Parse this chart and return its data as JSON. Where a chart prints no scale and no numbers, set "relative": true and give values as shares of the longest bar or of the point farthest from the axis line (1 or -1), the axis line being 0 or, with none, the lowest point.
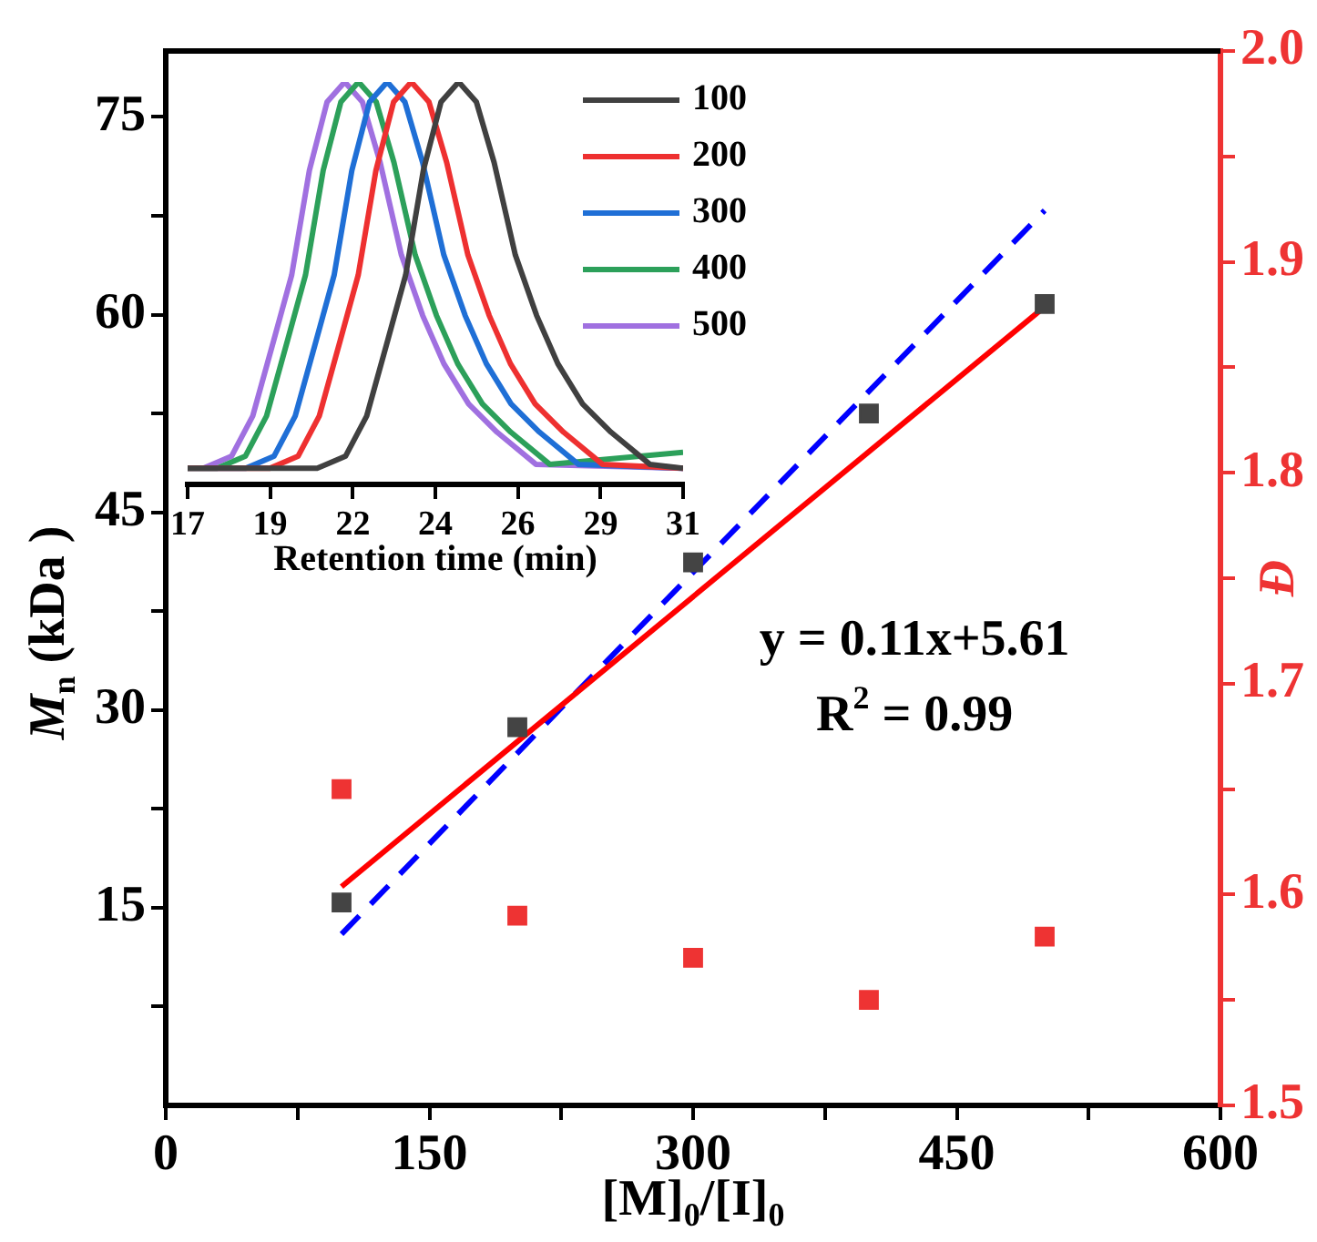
{
  "chart_data": [
    {
      "type": "scatter",
      "xlabel": "[M]$_{0}$/[I]$_{0}$",
      "ylabel": "M$_{n}$ (kDa )",
      "y2label": "Đ",
      "xlim": [
        0,
        600
      ],
      "xticks": [
        0,
        {
          "value": 75,
          "label": null
        },
        150,
        {
          "value": 225,
          "label": null
        },
        300,
        {
          "value": 375,
          "label": null
        },
        450,
        {
          "value": 525,
          "label": null
        },
        600
      ],
      "ylim": [
        0,
        80
      ],
      "yticks": [
        {
          "value": 7.5,
          "label": null
        },
        15,
        {
          "value": 22.5,
          "label": null
        },
        30,
        {
          "value": 37.5,
          "label": null
        },
        45,
        {
          "value": 52.5,
          "label": null
        },
        60,
        {
          "value": 67.5,
          "label": null
        },
        75
      ],
      "y2lim": [
        1.5,
        2.0
      ],
      "y2ticks": [
        1.5,
        {
          "value": 1.55,
          "label": null
        },
        1.6,
        {
          "value": 1.65,
          "label": null
        },
        1.7,
        {
          "value": 1.75,
          "label": null
        },
        1.8,
        {
          "value": 1.85,
          "label": null
        },
        1.9,
        {
          "value": 1.95,
          "label": null
        },
        {
          "value": 2,
          "label": "2.0"
        }
      ],
      "grid": false,
      "legend": false,
      "annotations": [
        "y = 0.11x+5.61",
        "R$^{2}$ = 0.99"
      ],
      "series": [
        {
          "type": "scatter",
          "marker": "square",
          "color": "#444444",
          "x": [
            100,
            200,
            300,
            400,
            500
          ],
          "values": [
            15.4,
            28.7,
            41.2,
            52.5,
            60.8
          ]
        },
        {
          "type": "scatter",
          "marker": "square",
          "color": "#ee3333",
          "axis": "y2",
          "x": [
            100,
            200,
            300,
            400,
            500
          ],
          "values": [
            1.65,
            1.59,
            1.57,
            1.55,
            1.58
          ]
        },
        {
          "type": "line",
          "marker": "none",
          "line_style": "solid",
          "color": "#ff0000",
          "x": [
            100,
            500
          ],
          "values": [
            16.6,
            60.6
          ]
        },
        {
          "type": "line",
          "marker": "none",
          "line_style": "dashed",
          "color": "#0000ff",
          "x": [
            100,
            500
          ],
          "values": [
            13,
            67.9
          ]
        }
      ]
    },
    {
      "type": "line",
      "xlabel": "Retention time (min)",
      "relative": true,
      "xlim": [
        17,
        31
      ],
      "xticks": [
        17,
        {
          "value": 19.33,
          "label": "19"
        },
        {
          "value": 21.67,
          "label": "22"
        },
        24,
        {
          "value": 26.33,
          "label": "26"
        },
        {
          "value": 28.67,
          "label": "29"
        },
        31
      ],
      "legend": "top right",
      "marker": "none",
      "grid": false,
      "series": [
        {
          "name": "100",
          "color": "#404040",
          "x": [
            17,
            20.66,
            21.46,
            22.06,
            22.66,
            23.16,
            23.66,
            24.16,
            24.66,
            25.16,
            25.66,
            26.26,
            26.86,
            27.46,
            28.16,
            28.96,
            30.06,
            31
          ],
          "values": [
            0.04,
            0.04,
            0.07,
            0.17,
            0.36,
            0.52,
            0.78,
            0.95,
            1,
            0.95,
            0.8,
            0.57,
            0.42,
            0.3,
            0.2,
            0.13,
            0.05,
            0.04
          ]
        },
        {
          "name": "200",
          "color": "#ee3030",
          "x": [
            17,
            19.32,
            20.12,
            20.72,
            21.32,
            21.82,
            22.32,
            22.82,
            23.32,
            23.82,
            24.32,
            24.92,
            25.52,
            26.12,
            26.82,
            27.62,
            28.72,
            31
          ],
          "values": [
            0.04,
            0.04,
            0.07,
            0.17,
            0.36,
            0.52,
            0.78,
            0.95,
            1,
            0.95,
            0.8,
            0.57,
            0.42,
            0.3,
            0.2,
            0.13,
            0.05,
            0.04
          ]
        },
        {
          "name": "300",
          "color": "#1f6fd6",
          "x": [
            17,
            18.64,
            19.44,
            20.04,
            20.64,
            21.14,
            21.64,
            22.14,
            22.64,
            23.14,
            23.64,
            24.24,
            24.84,
            25.44,
            26.14,
            26.94,
            28.04,
            31
          ],
          "values": [
            0.04,
            0.04,
            0.07,
            0.17,
            0.36,
            0.52,
            0.78,
            0.95,
            1,
            0.95,
            0.8,
            0.57,
            0.42,
            0.3,
            0.2,
            0.13,
            0.05,
            0.04
          ]
        },
        {
          "name": "400",
          "color": "#2ca05a",
          "x": [
            17,
            17.83,
            18.63,
            19.23,
            19.83,
            20.33,
            20.83,
            21.33,
            21.83,
            22.33,
            22.83,
            23.43,
            24.03,
            24.63,
            25.33,
            26.13,
            27.23,
            31
          ],
          "values": [
            0.04,
            0.04,
            0.07,
            0.17,
            0.36,
            0.52,
            0.78,
            0.95,
            1,
            0.95,
            0.8,
            0.57,
            0.42,
            0.3,
            0.2,
            0.13,
            0.05,
            0.08
          ]
        },
        {
          "name": "500",
          "color": "#a070e0",
          "x": [
            17.44,
            18.24,
            18.84,
            19.44,
            19.94,
            20.44,
            20.94,
            21.44,
            21.94,
            22.44,
            23.04,
            23.64,
            24.24,
            24.94,
            25.74,
            26.84,
            31
          ],
          "values": [
            0.04,
            0.07,
            0.17,
            0.36,
            0.52,
            0.78,
            0.95,
            1,
            0.95,
            0.8,
            0.57,
            0.42,
            0.3,
            0.2,
            0.13,
            0.05,
            0.04
          ]
        }
      ]
    }
  ]
}
